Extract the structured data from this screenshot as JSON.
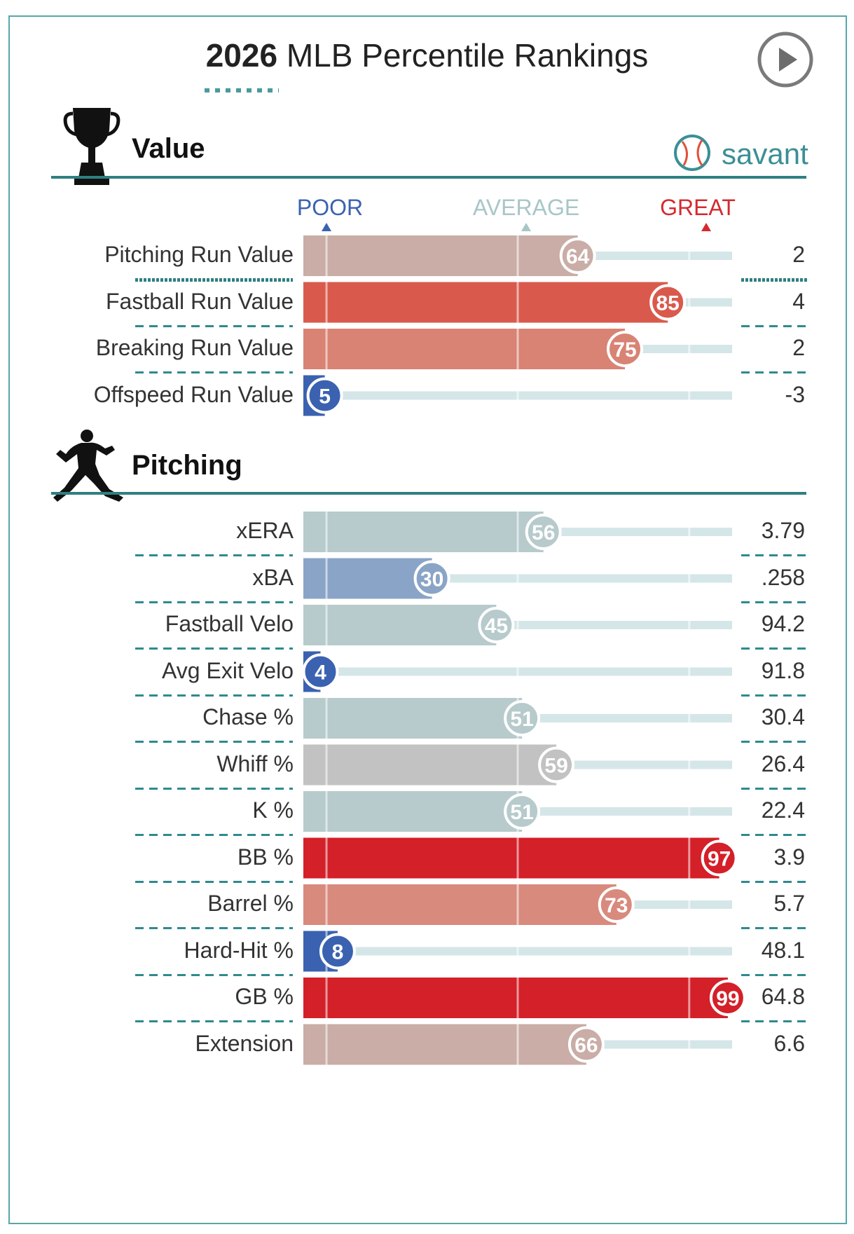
{
  "header": {
    "title_year": "2026",
    "title_rest": " MLB Percentile Rankings"
  },
  "icons": {
    "play": "play-button-icon",
    "trophy": "trophy-icon",
    "pitcher": "pitcher-silhouette-icon",
    "savant_logo": "baseball-icon"
  },
  "brand": {
    "savant": "savant"
  },
  "scale": {
    "poor": "POOR",
    "average": "AVERAGE",
    "great": "GREAT"
  },
  "colors": {
    "poor": "#3b62b0",
    "average": "#9fbcc0",
    "great": "#d42a2f",
    "track": "#d5e6e8",
    "rule": "#2f7f82"
  },
  "chart_data": {
    "type": "bar",
    "scale": [
      0,
      100
    ],
    "sections": [
      {
        "title": "Value",
        "metrics": [
          {
            "label": "Pitching Run Value",
            "percentile": 64,
            "value": "2",
            "color": "#c9ada6"
          },
          {
            "label": "Fastball Run Value",
            "percentile": 85,
            "value": "4",
            "color": "#d95a4c"
          },
          {
            "label": "Breaking Run Value",
            "percentile": 75,
            "value": "2",
            "color": "#d88374"
          },
          {
            "label": "Offspeed Run Value",
            "percentile": 5,
            "value": "-3",
            "color": "#3b62b0"
          }
        ]
      },
      {
        "title": "Pitching",
        "metrics": [
          {
            "label": "xERA",
            "percentile": 56,
            "value": "3.79",
            "color": "#b7cacc"
          },
          {
            "label": "xBA",
            "percentile": 30,
            "value": ".258",
            "color": "#8aa4c7"
          },
          {
            "label": "Fastball Velo",
            "percentile": 45,
            "value": "94.2",
            "color": "#b7cacc"
          },
          {
            "label": "Avg Exit Velo",
            "percentile": 4,
            "value": "91.8",
            "color": "#3b62b0"
          },
          {
            "label": "Chase %",
            "percentile": 51,
            "value": "30.4",
            "color": "#b7cacc"
          },
          {
            "label": "Whiff %",
            "percentile": 59,
            "value": "26.4",
            "color": "#c2c2c2"
          },
          {
            "label": "K %",
            "percentile": 51,
            "value": "22.4",
            "color": "#b7cacc"
          },
          {
            "label": "BB %",
            "percentile": 97,
            "value": "3.9",
            "color": "#d42029"
          },
          {
            "label": "Barrel %",
            "percentile": 73,
            "value": "5.7",
            "color": "#d88a7d"
          },
          {
            "label": "Hard-Hit %",
            "percentile": 8,
            "value": "48.1",
            "color": "#3b62b0"
          },
          {
            "label": "GB %",
            "percentile": 99,
            "value": "64.8",
            "color": "#d42029"
          },
          {
            "label": "Extension",
            "percentile": 66,
            "value": "6.6",
            "color": "#c9ada6"
          }
        ]
      }
    ]
  }
}
